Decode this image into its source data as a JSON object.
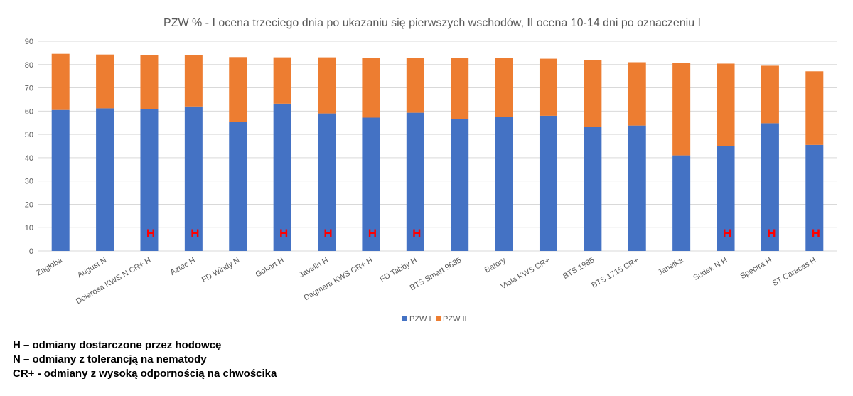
{
  "chart_data": {
    "type": "bar",
    "stacked": true,
    "title": "PZW % - I ocena trzeciego dnia po ukazaniu się pierwszych wschodów, II ocena 10-14 dni po oznaczeniu I",
    "xlabel": "",
    "ylabel": "",
    "ylim": [
      0,
      90
    ],
    "yticks": [
      0,
      10,
      20,
      30,
      40,
      50,
      60,
      70,
      80,
      90
    ],
    "grid": true,
    "legend_position": "bottom",
    "categories": [
      "Zagłoba",
      "August N",
      "Dolerosa KWS N CR+ H",
      "Aztec  H",
      "FD Windy N",
      "Gokart  H",
      "Javelin H",
      "Dagmara KWS CR+ H",
      "FD Tabby  H",
      "BTS Smart 9635",
      "Batory",
      "Viola KWS CR+",
      "BTS 1985",
      "BTS 1715 CR+",
      "Janetka",
      "Sudek N H",
      "Spectra  H",
      "ST Caracas  H"
    ],
    "series": [
      {
        "name": "PZW I",
        "color": "#4472c4",
        "values": [
          60.5,
          61.2,
          60.8,
          62.0,
          55.3,
          63.2,
          59.0,
          57.2,
          59.3,
          56.5,
          57.5,
          58.0,
          53.2,
          53.8,
          41.0,
          45.0,
          54.8,
          45.5
        ]
      },
      {
        "name": "PZW II",
        "color": "#ed7d31",
        "values": [
          24.1,
          23.1,
          23.3,
          22.0,
          27.9,
          19.9,
          24.1,
          25.7,
          23.5,
          26.3,
          25.3,
          24.5,
          28.7,
          27.2,
          39.6,
          35.4,
          24.7,
          31.6
        ]
      }
    ],
    "markers": {
      "text": "H",
      "color": "#ff0000",
      "categories": [
        "Dolerosa KWS N CR+ H",
        "Aztec  H",
        "Gokart  H",
        "Javelin H",
        "Dagmara KWS CR+ H",
        "FD Tabby  H",
        "Sudek N H",
        "Spectra  H",
        "ST Caracas  H"
      ]
    }
  },
  "notes": [
    "H – odmiany dostarczone przez hodowcę",
    "N – odmiany z tolerancją na nematody",
    "CR+ - odmiany z wysoką odpornością na chwościka"
  ]
}
